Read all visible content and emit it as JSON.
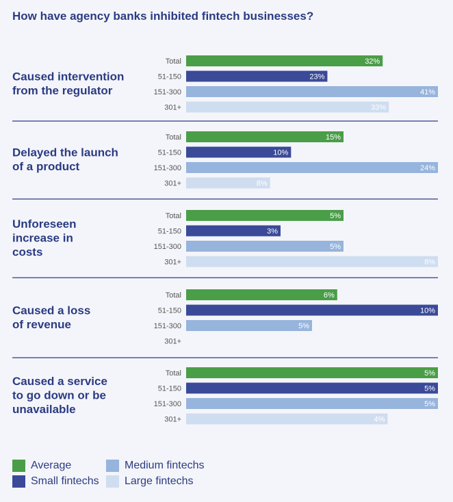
{
  "title": "How have agency banks inhibited fintech businesses?",
  "colors": {
    "Average": "#4a9e48",
    "Small fintechs": "#3a4a98",
    "Medium fintechs": "#96b4dc",
    "Large fintechs": "#cfddf0",
    "divider": "#2b3b82",
    "text": "#2b3b82",
    "tick": "#555555"
  },
  "chart_data": {
    "type": "bar",
    "orientation": "horizontal",
    "row_labels": [
      "Total",
      "51-150",
      "151-300",
      "301+"
    ],
    "legend": [
      {
        "name": "Average",
        "row": "Total"
      },
      {
        "name": "Small fintechs",
        "row": "51-150"
      },
      {
        "name": "Medium fintechs",
        "row": "151-300"
      },
      {
        "name": "Large fintechs",
        "row": "301+"
      }
    ],
    "groups": [
      {
        "label": "Caused intervention\nfrom the regulator",
        "scale_max": 41,
        "values": [
          32,
          23,
          41,
          33
        ],
        "labels": [
          "32%",
          "23%",
          "41%",
          "33%"
        ]
      },
      {
        "label": "Delayed the launch\nof a product",
        "scale_max": 24,
        "values": [
          15,
          10,
          24,
          8
        ],
        "labels": [
          "15%",
          "10%",
          "24%",
          "8%"
        ]
      },
      {
        "label": "Unforeseen\nincrease in\ncosts",
        "scale_max": 8,
        "values": [
          5,
          3,
          5,
          8
        ],
        "labels": [
          "5%",
          "3%",
          "5%",
          "8%"
        ]
      },
      {
        "label": "Caused a loss\nof revenue",
        "scale_max": 10,
        "values": [
          6,
          10,
          5,
          null
        ],
        "labels": [
          "6%",
          "10%",
          "5%",
          ""
        ]
      },
      {
        "label": "Caused a service\nto go down or be\nunavailable",
        "scale_max": 5,
        "values": [
          5,
          5,
          5,
          4
        ],
        "labels": [
          "5%",
          "5%",
          "5%",
          "4%"
        ]
      }
    ],
    "legend_placement": "bottom-left",
    "grid": false
  }
}
